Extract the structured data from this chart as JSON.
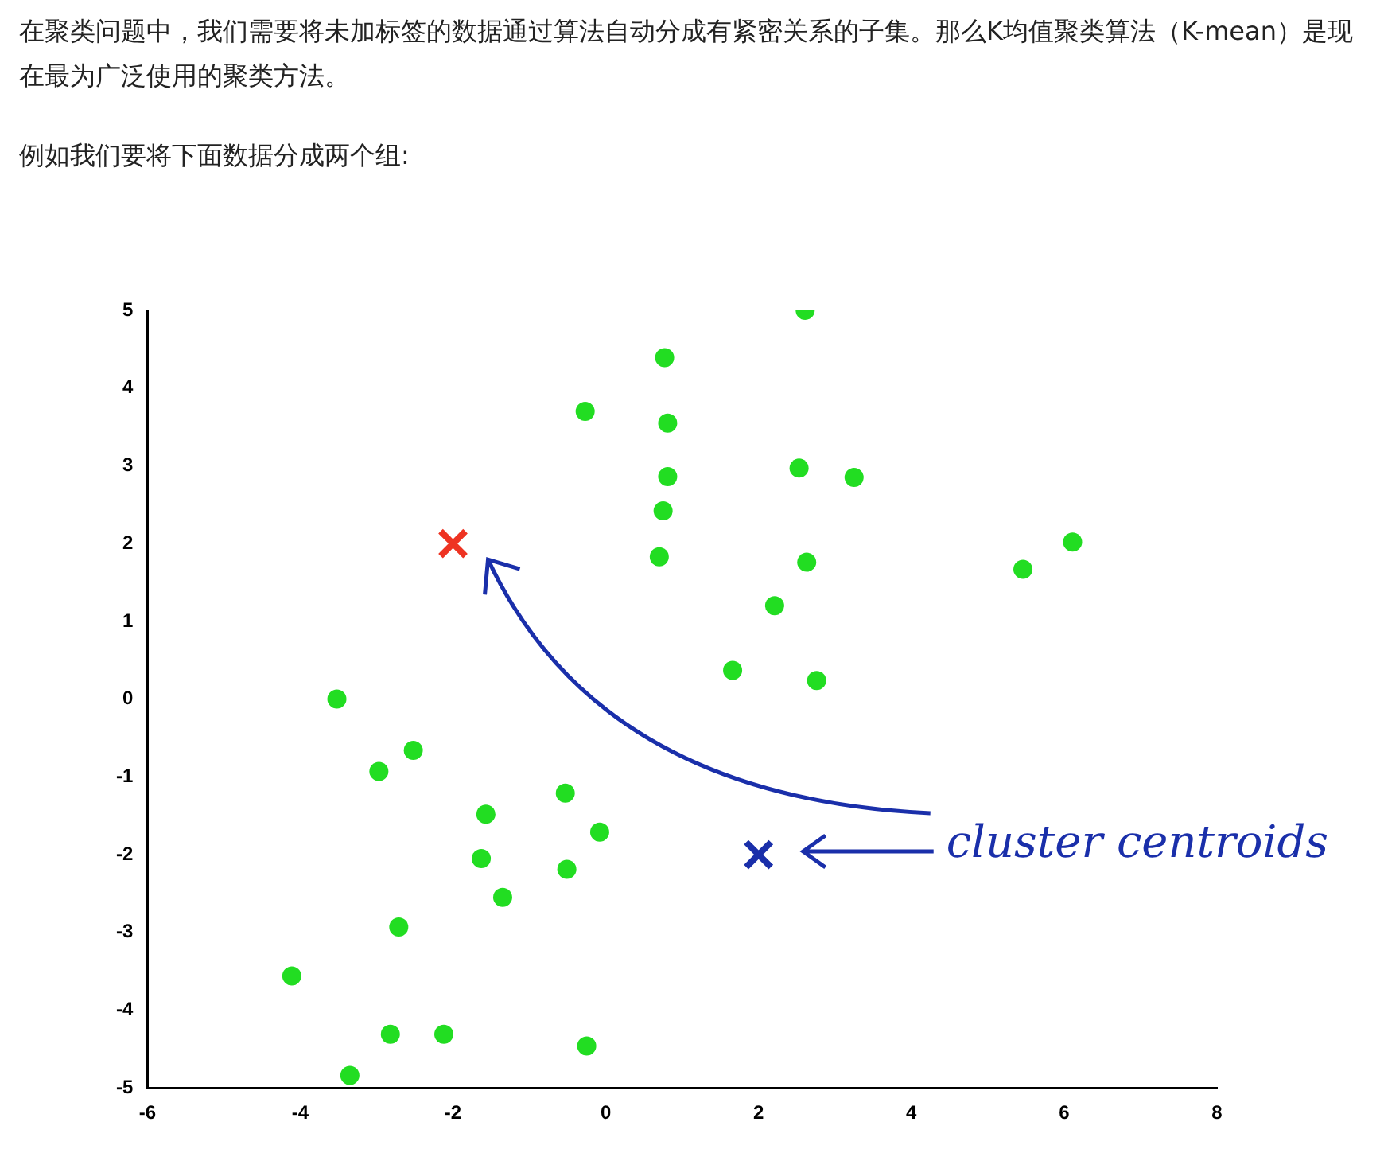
{
  "chart_data": {
    "type": "scatter",
    "title": "在聚类问题中，我们需要将未加标签的数据通过算法自动分成有紧密关系的子集。那么K均值聚类算法（K-mean）是现在最为广泛使用的聚类方法。",
    "subtitle": "例如我们要将下面数据分成两个组:",
    "annotations": [
      "cluster centroids"
    ],
    "series": [
      {
        "color": "#22dd22",
        "marker": "circle",
        "x": [
          -3.52,
          -2.97,
          -2.52,
          -1.57,
          -1.63,
          -1.35,
          -2.71,
          -4.11,
          -2.82,
          -2.12,
          -3.35,
          -0.25,
          -0.53,
          -0.51,
          -0.08,
          -0.27,
          0.77,
          0.81,
          0.81,
          0.75,
          0.7,
          2.61,
          2.53,
          3.25,
          2.63,
          2.21,
          1.66,
          2.76,
          5.46,
          6.11
        ],
        "values": [
          0,
          -0.93,
          -0.66,
          -1.48,
          -2.05,
          -2.55,
          -2.93,
          -3.56,
          -4.31,
          -4.31,
          -4.84,
          -4.46,
          -1.21,
          -2.19,
          -1.71,
          3.7,
          4.39,
          3.55,
          2.86,
          2.42,
          1.83,
          5,
          2.97,
          2.85,
          1.76,
          1.2,
          0.37,
          0.24,
          1.67,
          2.02
        ]
      },
      {
        "color": "#ee3322",
        "marker": "cross",
        "x": [
          -2
        ],
        "values": [
          2
        ]
      },
      {
        "color": "#1a2faa",
        "marker": "cross",
        "x": [
          2
        ],
        "values": [
          -2
        ]
      }
    ],
    "xlim": [
      -6,
      8
    ],
    "xticks": [
      -6,
      -4,
      -2,
      0,
      2,
      4,
      6,
      8
    ],
    "ylim": [
      -5,
      5
    ],
    "yticks": [
      -5,
      -4,
      -3,
      -2,
      -1,
      0,
      1,
      2,
      3,
      4,
      5
    ],
    "grid": false,
    "legend": false
  }
}
